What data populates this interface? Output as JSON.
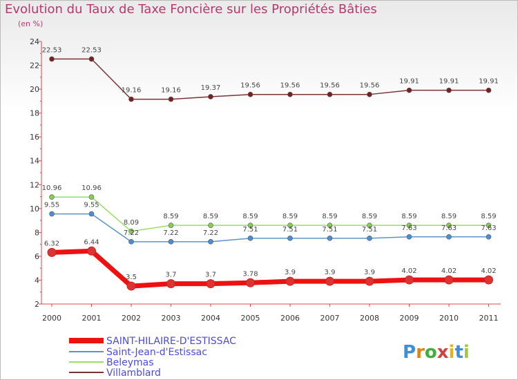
{
  "chart_data": {
    "type": "line",
    "title": "Evolution du Taux de Taxe Foncière sur les Propriétés Bâties",
    "ylabel": "(en %)",
    "ylim": [
      2,
      24
    ],
    "yticks": [
      2,
      4,
      6,
      8,
      10,
      12,
      14,
      16,
      18,
      20,
      22,
      24
    ],
    "categories": [
      "2000",
      "2001",
      "2002",
      "2003",
      "2004",
      "2005",
      "2006",
      "2007",
      "2008",
      "2009",
      "2010",
      "2011"
    ],
    "series": [
      {
        "name": "SAINT-HILAIRE-D'ESTISSAC",
        "color": "#ee1111",
        "pointColor": "#dd3333",
        "values": [
          6.32,
          6.44,
          3.5,
          3.7,
          3.7,
          3.78,
          3.9,
          3.9,
          3.9,
          4.02,
          4.02,
          4.02
        ],
        "labels": [
          "6.32",
          "6.44",
          "3.5",
          "3.7",
          "3.7",
          "3.78",
          "3.9",
          "3.9",
          "3.9",
          "4.02",
          "4.02",
          "4.02"
        ]
      },
      {
        "name": "Saint-Jean-d'Estissac",
        "color": "#5b93c8",
        "pointColor": "#4a8fd0",
        "values": [
          9.55,
          9.55,
          7.22,
          7.22,
          7.22,
          7.51,
          7.51,
          7.51,
          7.51,
          7.63,
          7.63,
          7.63
        ],
        "labels": [
          "9.55",
          "9.55",
          "7.22",
          "7.22",
          "7.22",
          "7.51",
          "7.51",
          "7.51",
          "7.51",
          "7.63",
          "7.63",
          "7.63"
        ]
      },
      {
        "name": "Beleymas",
        "color": "#99dd66",
        "pointColor": "#88cc55",
        "values": [
          10.96,
          10.96,
          8.09,
          8.59,
          8.59,
          8.59,
          8.59,
          8.59,
          8.59,
          8.59,
          8.59,
          8.59
        ],
        "labels": [
          "10.96",
          "10.96",
          "8.09",
          "8.59",
          "8.59",
          "8.59",
          "8.59",
          "8.59",
          "8.59",
          "8.59",
          "8.59",
          "8.59"
        ]
      },
      {
        "name": "Villamblard",
        "color": "#7a3333",
        "pointColor": "#772222",
        "values": [
          22.53,
          22.53,
          19.16,
          19.16,
          19.37,
          19.56,
          19.56,
          19.56,
          19.56,
          19.91,
          19.91,
          19.91
        ],
        "labels": [
          "22.53",
          "22.53",
          "19.16",
          "19.16",
          "19.37",
          "19.56",
          "19.56",
          "19.56",
          "19.56",
          "19.91",
          "19.91",
          "19.91"
        ]
      }
    ]
  },
  "logo": {
    "text": "Proxiti"
  }
}
